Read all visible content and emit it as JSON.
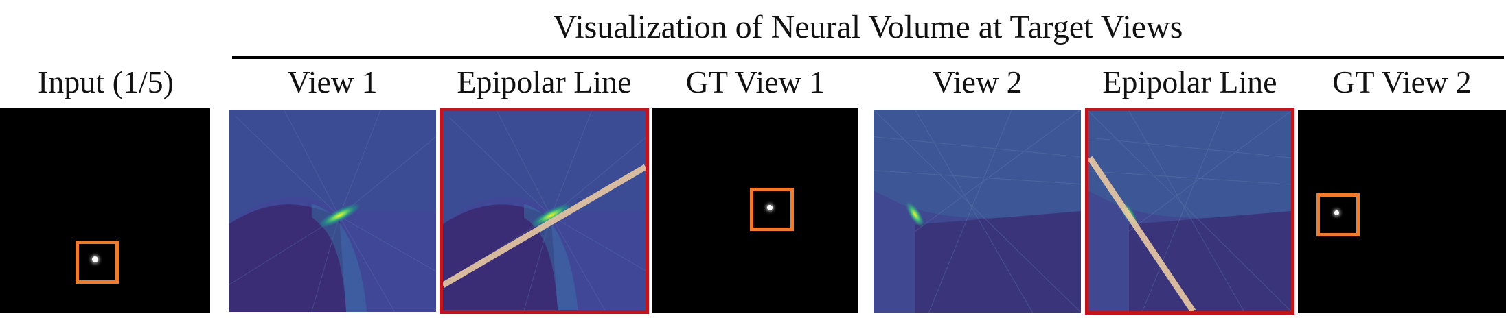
{
  "header": {
    "title": "Visualization of Neural Volume at Target Views"
  },
  "columns": {
    "input": "Input (1/5)",
    "view1": "View 1",
    "epipolar1": "Epipolar Line",
    "gt1": "GT View 1",
    "view2": "View 2",
    "epipolar2": "Epipolar Line",
    "gt2": "GT View 2"
  },
  "colors": {
    "highlight_box": "#f07b2e",
    "epipolar_frame": "#c0151c",
    "epipolar_line": "#e8c9a3",
    "volume_bg": "#3b3f8e",
    "volume_hotspot": "#f2f026"
  }
}
